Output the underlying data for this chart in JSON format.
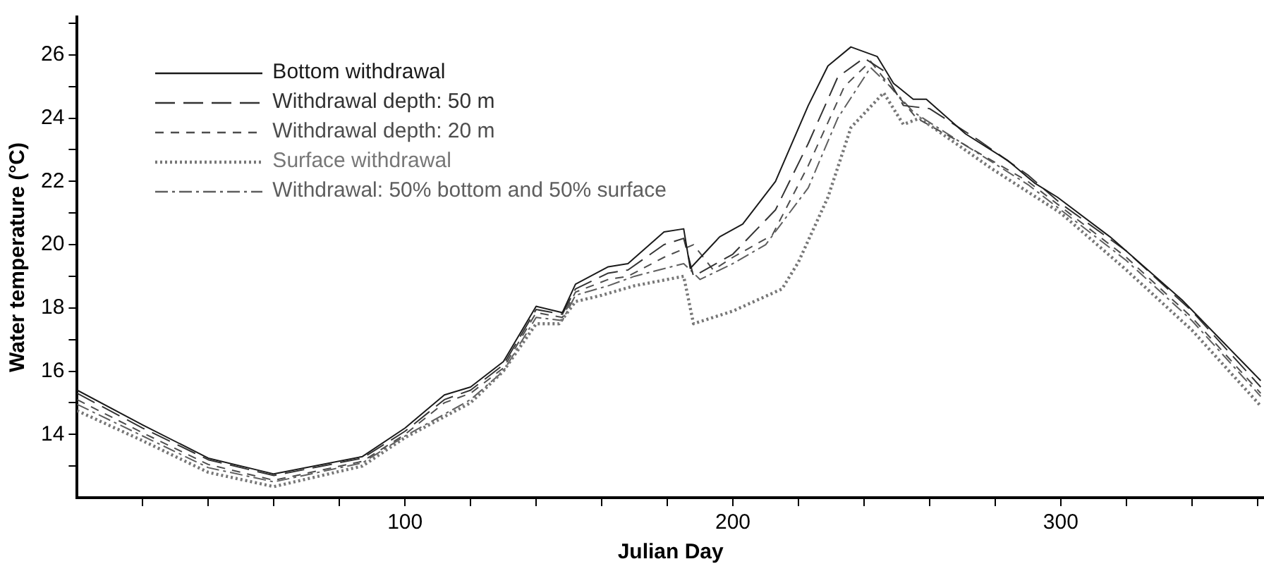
{
  "chart_data": {
    "type": "line",
    "xlabel": "Julian Day",
    "ylabel": "Water temperature (°C)",
    "xlim": [
      0,
      362
    ],
    "ylim": [
      12,
      27.2
    ],
    "xticks": [
      {
        "value": 20,
        "label": null
      },
      {
        "value": 40,
        "label": null
      },
      {
        "value": 60,
        "label": null
      },
      {
        "value": 80,
        "label": null
      },
      100,
      {
        "value": 120,
        "label": null
      },
      {
        "value": 140,
        "label": null
      },
      {
        "value": 160,
        "label": null
      },
      {
        "value": 180,
        "label": null
      },
      200,
      {
        "value": 220,
        "label": null
      },
      {
        "value": 240,
        "label": null
      },
      {
        "value": 260,
        "label": null
      },
      {
        "value": 280,
        "label": null
      },
      300,
      {
        "value": 320,
        "label": null
      },
      {
        "value": 340,
        "label": null
      },
      {
        "value": 360,
        "label": null
      }
    ],
    "yticks": [
      {
        "value": 13,
        "label": null
      },
      14,
      {
        "value": 15,
        "label": null
      },
      16,
      {
        "value": 17,
        "label": null
      },
      18,
      {
        "value": 19,
        "label": null
      },
      20,
      {
        "value": 21,
        "label": null
      },
      22,
      {
        "value": 23,
        "label": null
      },
      24,
      {
        "value": 25,
        "label": null
      },
      26,
      {
        "value": 27,
        "label": null
      }
    ],
    "grid": false,
    "legend": "top left",
    "marker": "none",
    "series": [
      {
        "name": "Bottom withdrawal",
        "color": "#1a1a1a",
        "line_style": "solid",
        "x": [
          0,
          20,
          40,
          60,
          87,
          100,
          112,
          120,
          130,
          140,
          148,
          152,
          162,
          168,
          179,
          185,
          187,
          196,
          203,
          213,
          223,
          229,
          236,
          244,
          249,
          255,
          259,
          271,
          284,
          292,
          299,
          315,
          337,
          361
        ],
        "values": [
          15.4,
          14.3,
          13.25,
          12.75,
          13.3,
          14.2,
          15.25,
          15.5,
          16.3,
          18.05,
          17.85,
          18.75,
          19.3,
          19.4,
          20.4,
          20.5,
          19.25,
          20.25,
          20.65,
          22.0,
          24.4,
          25.65,
          26.25,
          25.95,
          25.1,
          24.6,
          24.6,
          23.5,
          22.65,
          21.95,
          21.5,
          20.25,
          18.25,
          15.7
        ]
      },
      {
        "name": "Withdrawal depth: 50 m",
        "color": "#333333",
        "line_style": "longdash",
        "x": [
          0,
          20,
          40,
          60,
          87,
          100,
          112,
          120,
          130,
          140,
          148,
          152,
          162,
          168,
          179,
          185,
          188,
          200,
          213,
          223,
          232,
          240,
          246,
          252,
          260,
          275,
          290,
          300,
          320,
          340,
          361
        ],
        "values": [
          15.3,
          14.2,
          13.2,
          12.7,
          13.25,
          14.1,
          15.1,
          15.4,
          16.2,
          17.95,
          17.8,
          18.6,
          19.1,
          19.2,
          20.0,
          20.2,
          19.0,
          19.7,
          21.1,
          23.2,
          25.3,
          25.9,
          25.5,
          24.4,
          24.3,
          23.3,
          22.2,
          21.3,
          19.8,
          17.9,
          15.5
        ]
      },
      {
        "name": "Withdrawal depth: 20 m",
        "color": "#4d4d4d",
        "line_style": "dashed",
        "x": [
          0,
          20,
          40,
          60,
          87,
          100,
          112,
          120,
          130,
          140,
          148,
          152,
          162,
          168,
          179,
          188,
          194,
          200,
          212,
          223,
          234,
          242,
          248,
          256,
          270,
          290,
          300,
          320,
          340,
          361
        ],
        "values": [
          15.1,
          14.05,
          13.05,
          12.55,
          13.15,
          14.0,
          15.0,
          15.3,
          16.1,
          17.85,
          17.7,
          18.5,
          18.9,
          19.0,
          19.6,
          20.0,
          19.2,
          19.6,
          20.3,
          22.5,
          25.0,
          25.8,
          25.0,
          24.0,
          23.2,
          22.0,
          21.2,
          19.6,
          17.7,
          15.3
        ]
      },
      {
        "name": "Surface withdrawal",
        "color": "#777777",
        "line_style": "dotted",
        "x": [
          0,
          20,
          40,
          60,
          87,
          100,
          120,
          130,
          140,
          147,
          152,
          160,
          170,
          185,
          188,
          200,
          215,
          220,
          229,
          236,
          246,
          252,
          257,
          279,
          300,
          320,
          340,
          361
        ],
        "values": [
          14.75,
          13.8,
          12.8,
          12.35,
          13.0,
          13.9,
          15.0,
          16.0,
          17.5,
          17.5,
          18.2,
          18.4,
          18.7,
          19.0,
          17.5,
          17.9,
          18.6,
          19.45,
          21.5,
          23.7,
          24.8,
          23.8,
          24.0,
          22.4,
          21.0,
          19.2,
          17.3,
          14.9
        ]
      },
      {
        "name": "Withdrawal: 50% bottom and 50% surface",
        "color": "#5e5e5e",
        "line_style": "dashdot",
        "x": [
          0,
          20,
          40,
          60,
          87,
          100,
          120,
          130,
          140,
          148,
          152,
          162,
          170,
          185,
          190,
          200,
          210,
          223,
          232,
          242,
          248,
          255,
          270,
          290,
          300,
          320,
          340,
          361
        ],
        "values": [
          14.95,
          13.95,
          12.95,
          12.5,
          13.1,
          13.95,
          15.1,
          16.0,
          17.7,
          17.6,
          18.4,
          18.7,
          19.0,
          19.4,
          18.9,
          19.4,
          20.0,
          21.8,
          24.0,
          25.6,
          25.0,
          24.2,
          23.2,
          21.9,
          21.1,
          19.5,
          17.6,
          15.2
        ]
      }
    ]
  }
}
